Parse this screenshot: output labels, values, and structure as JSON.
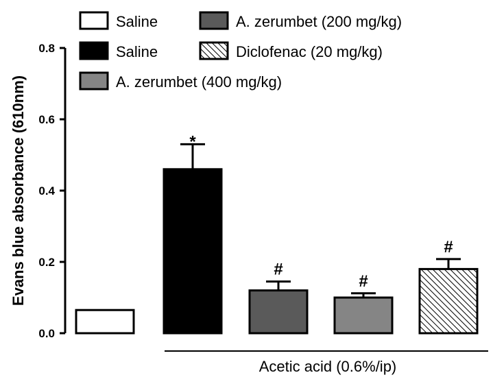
{
  "chart_data": {
    "type": "bar",
    "categories": [
      "Saline",
      "Saline",
      "A. zerumbet (200 mg/kg)",
      "A. zerumbet (400 mg/kg)",
      "Diclofenac (20 mg/kg)"
    ],
    "values": [
      0.065,
      0.46,
      0.12,
      0.1,
      0.18
    ],
    "errors": [
      0.0,
      0.07,
      0.025,
      0.012,
      0.028
    ],
    "significance": [
      "",
      "*",
      "#",
      "#",
      "#"
    ],
    "fills": [
      "white",
      "black",
      "dark-gray",
      "gray",
      "hatched"
    ],
    "colors": {
      "dark_gray": "#5a5a5a",
      "gray": "#858585",
      "black": "#000000",
      "white": "#ffffff"
    },
    "ylabel": "Evans blue absorbance (610nm)",
    "xlabel": "",
    "ylim": [
      0,
      0.8
    ],
    "yticks": [
      "0.0",
      "0.2",
      "0.4",
      "0.6",
      "0.8"
    ],
    "group_label": "Acetic acid  (0.6%/ip)",
    "grid": false,
    "legend_position": "top",
    "legend": [
      {
        "label": "Saline",
        "fill": "white"
      },
      {
        "label": "A. zerumbet (200 mg/kg)",
        "fill": "dark-gray"
      },
      {
        "label": "Saline",
        "fill": "black"
      },
      {
        "label": "Diclofenac (20 mg/kg)",
        "fill": "hatched"
      },
      {
        "label": "A. zerumbet (400 mg/kg)",
        "fill": "gray"
      }
    ]
  }
}
